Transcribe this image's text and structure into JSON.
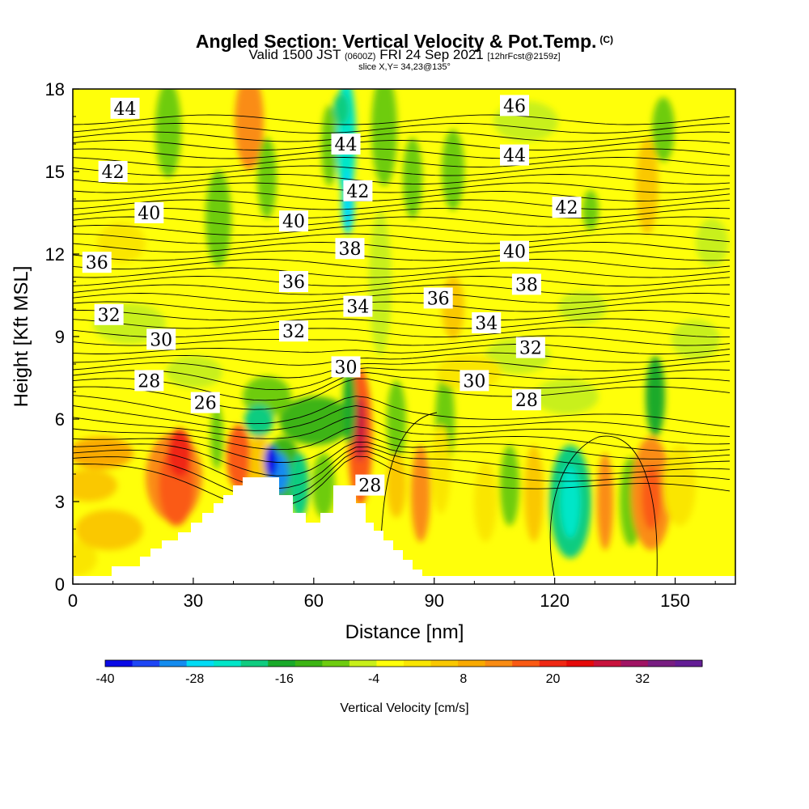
{
  "title": {
    "main": "Angled Section: Vertical Velocity & Pot.Temp.",
    "suffix": "(C)"
  },
  "subtitle": {
    "valid": "Valid 1500 JST",
    "zulu": "(0600Z)",
    "date": "FRI 24 Sep 2021",
    "fcst": "[12hrFcst@2159z]"
  },
  "slice_label": "slice X,Y= 34,23@135°",
  "colorbar": {
    "label": "Vertical Velocity [cm/s]",
    "tick_labels": [
      "-40",
      "-28",
      "-16",
      "-4",
      "8",
      "20",
      "32"
    ],
    "colors": [
      "#0a0ae6",
      "#1e46f5",
      "#148cf0",
      "#00dcf5",
      "#00e6c8",
      "#10cc80",
      "#1aaa2a",
      "#3cb414",
      "#6ecc10",
      "#c8f01a",
      "#ffff0a",
      "#fae600",
      "#fac800",
      "#faaa00",
      "#fa8c14",
      "#fa5a14",
      "#f02814",
      "#e60a0a",
      "#c8123c",
      "#a01464",
      "#781e82",
      "#641e96"
    ]
  },
  "chart_data": {
    "type": "heatmap",
    "x": {
      "label": "Distance [nm]",
      "min": 0,
      "max": 165,
      "ticks": [
        "0",
        "30",
        "60",
        "90",
        "120",
        "150"
      ],
      "tick_values": [
        0,
        30,
        60,
        90,
        120,
        150
      ]
    },
    "y": {
      "label": "Height [Kft MSL]",
      "min": 0,
      "max": 18,
      "ticks": [
        "0",
        "3",
        "6",
        "9",
        "12",
        "15",
        "18"
      ],
      "tick_values": [
        0,
        3,
        6,
        9,
        12,
        15,
        18
      ]
    },
    "fill_variable": "Vertical Velocity [cm/s]",
    "fill_range": [
      -40,
      40
    ],
    "contour_variable": "Pot.Temp.",
    "contour_labels": [
      {
        "text": "44",
        "x": 13,
        "y": 17.3
      },
      {
        "text": "46",
        "x": 110,
        "y": 17.4
      },
      {
        "text": "44",
        "x": 68,
        "y": 16.0
      },
      {
        "text": "42",
        "x": 10,
        "y": 15.0
      },
      {
        "text": "44",
        "x": 110,
        "y": 15.6
      },
      {
        "text": "42",
        "x": 71,
        "y": 14.3
      },
      {
        "text": "40",
        "x": 19,
        "y": 13.5
      },
      {
        "text": "40",
        "x": 55,
        "y": 13.2
      },
      {
        "text": "42",
        "x": 123,
        "y": 13.7
      },
      {
        "text": "38",
        "x": 69,
        "y": 12.2
      },
      {
        "text": "40",
        "x": 110,
        "y": 12.1
      },
      {
        "text": "36",
        "x": 6,
        "y": 11.7
      },
      {
        "text": "36",
        "x": 55,
        "y": 11.0
      },
      {
        "text": "38",
        "x": 113,
        "y": 10.9
      },
      {
        "text": "34",
        "x": 71,
        "y": 10.1
      },
      {
        "text": "36",
        "x": 91,
        "y": 10.4
      },
      {
        "text": "32",
        "x": 9,
        "y": 9.8
      },
      {
        "text": "32",
        "x": 55,
        "y": 9.2
      },
      {
        "text": "34",
        "x": 103,
        "y": 9.5
      },
      {
        "text": "30",
        "x": 22,
        "y": 8.9
      },
      {
        "text": "32",
        "x": 114,
        "y": 8.6
      },
      {
        "text": "30",
        "x": 68,
        "y": 7.9
      },
      {
        "text": "28",
        "x": 19,
        "y": 7.4
      },
      {
        "text": "30",
        "x": 100,
        "y": 7.4
      },
      {
        "text": "26",
        "x": 33,
        "y": 6.6
      },
      {
        "text": "28",
        "x": 113,
        "y": 6.7
      },
      {
        "text": "28",
        "x": 74,
        "y": 3.6
      }
    ]
  }
}
